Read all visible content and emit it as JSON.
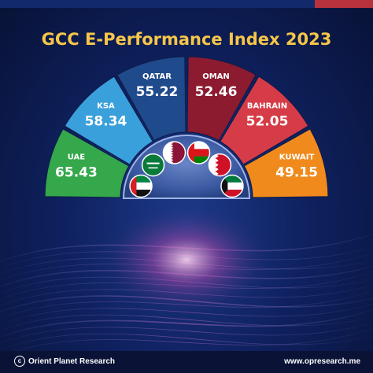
{
  "header": {
    "title": "GCC E-Performance Index 2023"
  },
  "chart_data": {
    "type": "pie",
    "title": "GCC E-Performance Index 2023",
    "categories": [
      "UAE",
      "KSA",
      "QATAR",
      "OMAN",
      "BAHRAIN",
      "KUWAIT"
    ],
    "values": [
      65.43,
      58.34,
      55.22,
      52.46,
      52.05,
      49.15
    ],
    "value_labels": [
      "65.43",
      "58.34",
      "55.22",
      "52.46",
      "52.05",
      "49.15"
    ],
    "colors": [
      "#34a84a",
      "#3aa0dc",
      "#1f4a8c",
      "#8c1b30",
      "#d63c48",
      "#f08a1c"
    ],
    "flags": [
      "uae-flag",
      "ksa-flag",
      "qatar-flag",
      "oman-flag",
      "bahrain-flag",
      "kuwait-flag"
    ]
  },
  "footer": {
    "brand": "Orient Planet Research",
    "logo": "c",
    "website": "www.opresearch.me"
  }
}
